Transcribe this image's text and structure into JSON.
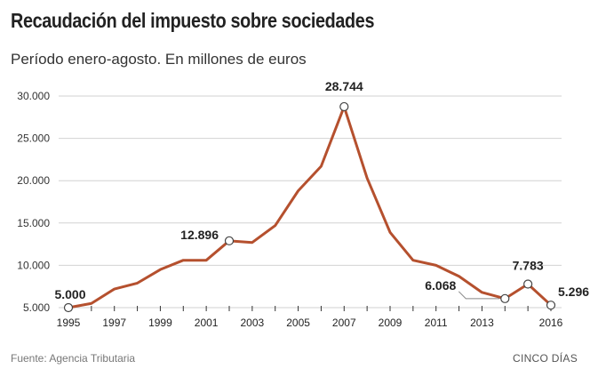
{
  "chart_data": {
    "type": "line",
    "title": "Recaudación del impuesto sobre sociedades",
    "subtitle": "Período enero-agosto. En millones de euros",
    "xlabel": "",
    "ylabel": "",
    "x": [
      1995,
      1996,
      1997,
      1998,
      1999,
      2000,
      2001,
      2002,
      2003,
      2004,
      2005,
      2006,
      2007,
      2008,
      2009,
      2010,
      2011,
      2012,
      2013,
      2014,
      2015,
      2016
    ],
    "values": [
      5000,
      5500,
      7200,
      7900,
      9500,
      10600,
      10600,
      12896,
      12700,
      14700,
      18800,
      21700,
      28744,
      20300,
      13900,
      10600,
      10000,
      8700,
      6800,
      6068,
      7783,
      5296
    ],
    "x_tick_labels": [
      "1995",
      "1997",
      "1999",
      "2001",
      "2003",
      "2005",
      "2007",
      "2009",
      "2011",
      "2013",
      "2016"
    ],
    "x_tick_years": [
      1995,
      1997,
      1999,
      2001,
      2003,
      2005,
      2007,
      2009,
      2011,
      2013,
      2016
    ],
    "y_ticks": [
      5000,
      10000,
      15000,
      20000,
      25000,
      30000
    ],
    "y_tick_labels": [
      "5.000",
      "10.000",
      "15.000",
      "20.000",
      "25.000",
      "30.000"
    ],
    "ylim": [
      5000,
      30000
    ],
    "grid": true,
    "line_color": "#b5502e",
    "annotations": [
      {
        "year": 1995,
        "label": "5.000"
      },
      {
        "year": 2002,
        "label": "12.896"
      },
      {
        "year": 2007,
        "label": "28.744"
      },
      {
        "year": 2014,
        "label": "6.068"
      },
      {
        "year": 2015,
        "label": "7.783"
      },
      {
        "year": 2016,
        "label": "5.296"
      }
    ]
  },
  "footer": {
    "source": "Fuente: Agencia Tributaria",
    "brand": "CINCO DÍAS"
  }
}
